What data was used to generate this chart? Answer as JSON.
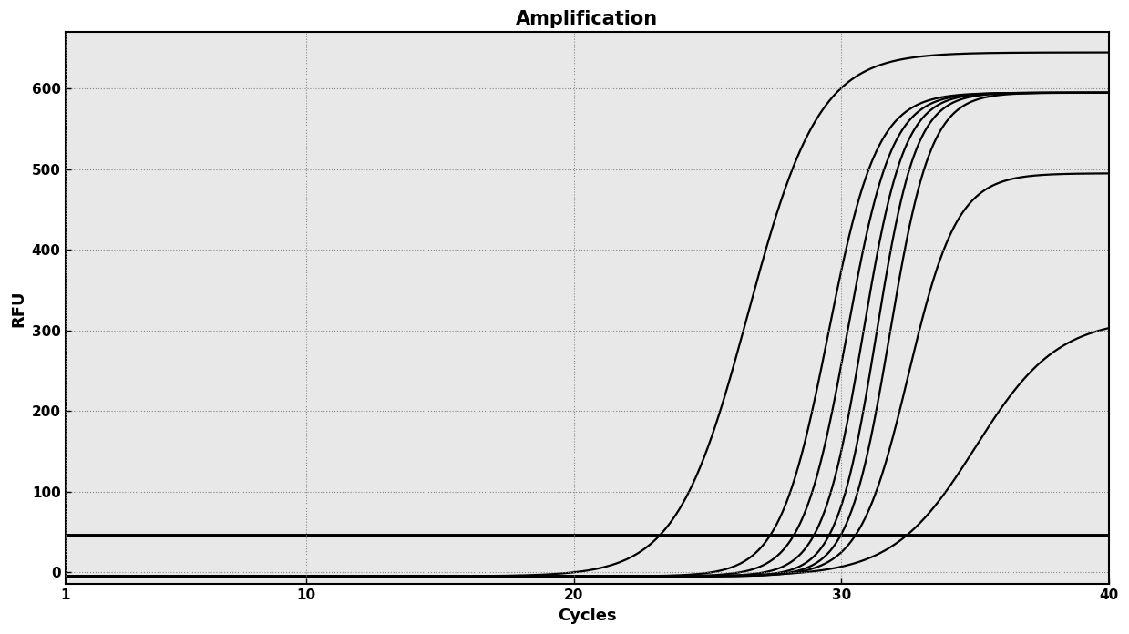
{
  "title": "Amplification",
  "xlabel": "Cycles",
  "ylabel": "RFU",
  "xlim": [
    1,
    40
  ],
  "ylim": [
    -15,
    670
  ],
  "xticks": [
    1,
    10,
    20,
    30,
    40
  ],
  "yticks": [
    0,
    100,
    200,
    300,
    400,
    500,
    600
  ],
  "threshold_y": 45,
  "background_color": "#ffffff",
  "plot_bg_color": "#e8e8e8",
  "line_color": "#000000",
  "grid_color": "#888888",
  "curves": [
    {
      "midpoint": 26.5,
      "slope": 0.75,
      "L": 650,
      "baseline": -5
    },
    {
      "midpoint": 29.5,
      "slope": 1.1,
      "L": 600,
      "baseline": -5
    },
    {
      "midpoint": 30.2,
      "slope": 1.2,
      "L": 600,
      "baseline": -5
    },
    {
      "midpoint": 30.8,
      "slope": 1.3,
      "L": 600,
      "baseline": -5
    },
    {
      "midpoint": 31.3,
      "slope": 1.35,
      "L": 600,
      "baseline": -5
    },
    {
      "midpoint": 31.8,
      "slope": 1.3,
      "L": 600,
      "baseline": -5
    },
    {
      "midpoint": 32.5,
      "slope": 1.1,
      "L": 500,
      "baseline": -5
    },
    {
      "midpoint": 35.0,
      "slope": 0.65,
      "L": 320,
      "baseline": -5
    }
  ],
  "title_fontsize": 15,
  "axis_label_fontsize": 13,
  "tick_fontsize": 11,
  "line_width": 1.6,
  "threshold_linewidth": 2.8
}
